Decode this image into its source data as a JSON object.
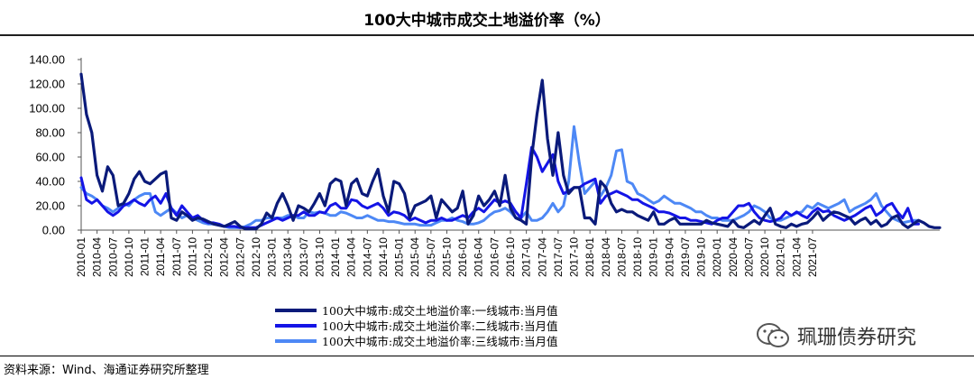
{
  "title": "100大中城市成交土地溢价率（%）",
  "source": "资料来源：Wind、海通证券研究所整理",
  "watermark": "珮珊债券研究",
  "colors": {
    "first_tier": "#0a1a7a",
    "second_tier": "#1414e6",
    "third_tier": "#4d88f5"
  },
  "chart_data": {
    "type": "line",
    "title": "100大中城市成交土地溢价率（%）",
    "ylim": [
      0,
      140
    ],
    "yticks": [
      "0.00",
      "20.00",
      "40.00",
      "60.00",
      "80.00",
      "100.00",
      "120.00",
      "140.00"
    ],
    "xticks": [
      "2010-01",
      "2010-04",
      "2010-07",
      "2010-10",
      "2011-01",
      "2011-04",
      "2011-07",
      "2011-10",
      "2012-01",
      "2012-04",
      "2012-07",
      "2012-10",
      "2013-01",
      "2013-04",
      "2013-07",
      "2013-10",
      "2014-01",
      "2014-04",
      "2014-07",
      "2014-10",
      "2015-01",
      "2015-04",
      "2015-07",
      "2015-10",
      "2016-01",
      "2016-04",
      "2016-07",
      "2016-10",
      "2017-01",
      "2017-04",
      "2017-07",
      "2017-10",
      "2018-01",
      "2018-04",
      "2018-07",
      "2018-10",
      "2019-01",
      "2019-04",
      "2019-07",
      "2019-10",
      "2020-01",
      "2020-04",
      "2020-07",
      "2020-10",
      "2021-01",
      "2021-04",
      "2021-07"
    ],
    "x_start": "2010-01",
    "x_end": "2021-08",
    "grid": false,
    "legend_position": "bottom",
    "series": [
      {
        "name": "100大中城市:成交土地溢价率:一线城市:当月值",
        "values": [
          128,
          95,
          80,
          45,
          32,
          52,
          45,
          20,
          22,
          30,
          42,
          48,
          40,
          38,
          42,
          46,
          48,
          10,
          8,
          15,
          12,
          8,
          10,
          9,
          7,
          5,
          4,
          3,
          5,
          7,
          3,
          1,
          1,
          1,
          5,
          14,
          10,
          22,
          30,
          20,
          8,
          20,
          18,
          15,
          22,
          30,
          20,
          38,
          42,
          40,
          20,
          38,
          42,
          30,
          28,
          40,
          50,
          28,
          15,
          40,
          38,
          30,
          10,
          20,
          22,
          24,
          28,
          10,
          25,
          20,
          15,
          18,
          32,
          5,
          12,
          28,
          20,
          25,
          32,
          20,
          45,
          18,
          10,
          8,
          5,
          60,
          95,
          123,
          75,
          45,
          80,
          45,
          30,
          35,
          35,
          10,
          10,
          5,
          40,
          35,
          22,
          15,
          17,
          15,
          15,
          12,
          10,
          8,
          15,
          5,
          5,
          8,
          10,
          5,
          5,
          5,
          5,
          5,
          8,
          6,
          5,
          4,
          3,
          8,
          3,
          2,
          5,
          8,
          5,
          12,
          18,
          5,
          3,
          2,
          5,
          3,
          5,
          6,
          10,
          15,
          8,
          12,
          15,
          14,
          12,
          10,
          5,
          8,
          10,
          5,
          8,
          3,
          5,
          10,
          12,
          5,
          2,
          5,
          8,
          6,
          3,
          2,
          2
        ]
      },
      {
        "name": "100大中城市:成交土地溢价率:二线城市:当月值",
        "values": [
          43,
          25,
          22,
          25,
          20,
          15,
          12,
          15,
          20,
          22,
          25,
          22,
          20,
          25,
          28,
          22,
          30,
          18,
          12,
          20,
          15,
          10,
          12,
          8,
          6,
          6,
          5,
          3,
          3,
          3,
          2,
          2,
          2,
          2,
          4,
          6,
          8,
          10,
          8,
          10,
          12,
          12,
          15,
          12,
          12,
          15,
          14,
          20,
          22,
          18,
          18,
          25,
          24,
          20,
          18,
          20,
          22,
          18,
          12,
          15,
          14,
          12,
          8,
          10,
          8,
          6,
          8,
          8,
          10,
          8,
          8,
          10,
          12,
          10,
          15,
          18,
          15,
          20,
          25,
          22,
          24,
          22,
          15,
          10,
          38,
          68,
          60,
          48,
          55,
          62,
          40,
          30,
          32,
          35,
          35,
          38,
          40,
          42,
          22,
          28,
          30,
          32,
          30,
          28,
          25,
          25,
          22,
          20,
          18,
          15,
          15,
          14,
          12,
          10,
          10,
          8,
          8,
          7,
          6,
          5,
          8,
          10,
          10,
          15,
          20,
          20,
          22,
          15,
          10,
          8,
          7,
          8,
          10,
          15,
          12,
          15,
          12,
          10,
          15,
          18,
          15,
          16,
          12,
          10,
          8,
          10,
          12,
          15,
          18,
          20,
          12,
          15,
          20,
          22,
          15,
          10,
          18,
          5,
          5
        ]
      },
      {
        "name": "100大中城市:成交土地溢价率:三线城市:当月值",
        "values": [
          35,
          30,
          28,
          25,
          20,
          18,
          15,
          18,
          22,
          20,
          25,
          28,
          30,
          30,
          15,
          12,
          15,
          18,
          14,
          10,
          12,
          10,
          8,
          6,
          5,
          5,
          4,
          3,
          2,
          2,
          2,
          3,
          5,
          8,
          8,
          10,
          10,
          10,
          10,
          12,
          12,
          10,
          10,
          15,
          14,
          15,
          14,
          12,
          12,
          15,
          14,
          12,
          10,
          10,
          12,
          10,
          8,
          8,
          7,
          7,
          6,
          5,
          5,
          5,
          4,
          4,
          4,
          6,
          8,
          8,
          10,
          8,
          7,
          5,
          5,
          6,
          8,
          12,
          15,
          16,
          18,
          15,
          10,
          10,
          15,
          8,
          8,
          10,
          15,
          22,
          15,
          20,
          40,
          85,
          55,
          30,
          35,
          40,
          28,
          35,
          45,
          65,
          66,
          40,
          38,
          30,
          28,
          25,
          22,
          24,
          28,
          25,
          22,
          22,
          20,
          18,
          15,
          15,
          12,
          10,
          10,
          8,
          8,
          8,
          10,
          12,
          15,
          20,
          18,
          15,
          10,
          8,
          8,
          10,
          12,
          14,
          15,
          20,
          18,
          22,
          20,
          18,
          20,
          22,
          25,
          15,
          18,
          20,
          22,
          25,
          30,
          20,
          15,
          10,
          8,
          6,
          7,
          8,
          8
        ]
      }
    ]
  }
}
